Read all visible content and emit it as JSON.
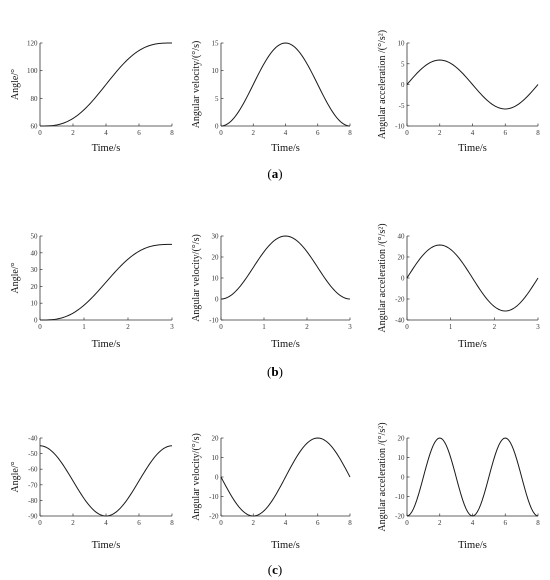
{
  "captions": [
    "a",
    "b",
    "c"
  ],
  "chart_data": [
    {
      "id": "a1",
      "row": 0,
      "type": "line",
      "xlabel": "Time/s",
      "ylabel": "Angle/°",
      "xlim": [
        0,
        8
      ],
      "ylim": [
        60,
        120
      ],
      "xticks": [
        0,
        2,
        4,
        6,
        8
      ],
      "yticks": [
        60,
        80,
        100,
        120
      ],
      "func": "cyc",
      "params": {
        "p0": 60,
        "A": 60,
        "T": 8
      },
      "samples": 81
    },
    {
      "id": "a2",
      "row": 0,
      "type": "line",
      "xlabel": "Time/s",
      "ylabel": "Angular velocity/(°/s)",
      "xlim": [
        0,
        8
      ],
      "ylim": [
        0,
        15
      ],
      "xticks": [
        0,
        2,
        4,
        6,
        8
      ],
      "yticks": [
        0,
        5,
        10,
        15
      ],
      "func": "vel",
      "params": {
        "A": 60,
        "T": 8
      },
      "samples": 81
    },
    {
      "id": "a3",
      "row": 0,
      "type": "line",
      "xlabel": "Time/s",
      "ylabel": "Angular acceleration /(°/s²)",
      "xlim": [
        0,
        8
      ],
      "ylim": [
        -10,
        10
      ],
      "xticks": [
        0,
        2,
        4,
        6,
        8
      ],
      "yticks": [
        -10,
        -5,
        0,
        5,
        10
      ],
      "func": "acc",
      "params": {
        "A": 60,
        "T": 8
      },
      "samples": 81
    },
    {
      "id": "b1",
      "row": 1,
      "type": "line",
      "xlabel": "Time/s",
      "ylabel": "Angle/°",
      "xlim": [
        0,
        3
      ],
      "ylim": [
        0,
        50
      ],
      "xticks": [
        0,
        1,
        2,
        3
      ],
      "yticks": [
        0,
        10,
        20,
        30,
        40,
        50
      ],
      "func": "cyc",
      "params": {
        "p0": 0,
        "A": 45,
        "T": 3
      },
      "samples": 81
    },
    {
      "id": "b2",
      "row": 1,
      "type": "line",
      "xlabel": "Time/s",
      "ylabel": "Angular velocity/(°/s)",
      "xlim": [
        0,
        3
      ],
      "ylim": [
        -10,
        30
      ],
      "xticks": [
        0,
        1,
        2,
        3
      ],
      "yticks": [
        -10,
        0,
        10,
        20,
        30
      ],
      "func": "vel",
      "params": {
        "A": 45,
        "T": 3
      },
      "samples": 81
    },
    {
      "id": "b3",
      "row": 1,
      "type": "line",
      "xlabel": "Time/s",
      "ylabel": "Angular acceleration /(°/s²)",
      "xlim": [
        0,
        3
      ],
      "ylim": [
        -40,
        40
      ],
      "xticks": [
        0,
        1,
        2,
        3
      ],
      "yticks": [
        -40,
        -20,
        0,
        20,
        40
      ],
      "func": "acc",
      "params": {
        "A": 45,
        "T": 3
      },
      "samples": 81
    },
    {
      "id": "c1",
      "row": 2,
      "type": "line",
      "xlabel": "Time/s",
      "ylabel": "Angle/°",
      "xlim": [
        0,
        8
      ],
      "ylim": [
        -90,
        -40
      ],
      "xticks": [
        0,
        2,
        4,
        6,
        8
      ],
      "yticks": [
        -90,
        -80,
        -70,
        -60,
        -50,
        -40
      ],
      "func": "cos",
      "params": {
        "mid": -67.5,
        "amp": 22.5,
        "T": 8,
        "sign": 1
      },
      "samples": 81
    },
    {
      "id": "c2",
      "row": 2,
      "type": "line",
      "xlabel": "Time/s",
      "ylabel": "Angular velocity/(°/s)",
      "xlim": [
        0,
        8
      ],
      "ylim": [
        -20,
        20
      ],
      "xticks": [
        0,
        2,
        4,
        6,
        8
      ],
      "yticks": [
        -20,
        -10,
        0,
        10,
        20
      ],
      "func": "sin",
      "params": {
        "amp": -20,
        "T": 8
      },
      "samples": 81
    },
    {
      "id": "c3",
      "row": 2,
      "type": "line",
      "xlabel": "Time/s",
      "ylabel": "Angular acceleration /(°/s²)",
      "xlim": [
        0,
        8
      ],
      "ylim": [
        -20,
        20
      ],
      "xticks": [
        0,
        2,
        4,
        6,
        8
      ],
      "yticks": [
        -20,
        -10,
        0,
        10,
        20
      ],
      "func": "cos",
      "params": {
        "mid": 0,
        "amp": -20,
        "T": 4,
        "sign": 1
      },
      "samples": 81
    }
  ]
}
